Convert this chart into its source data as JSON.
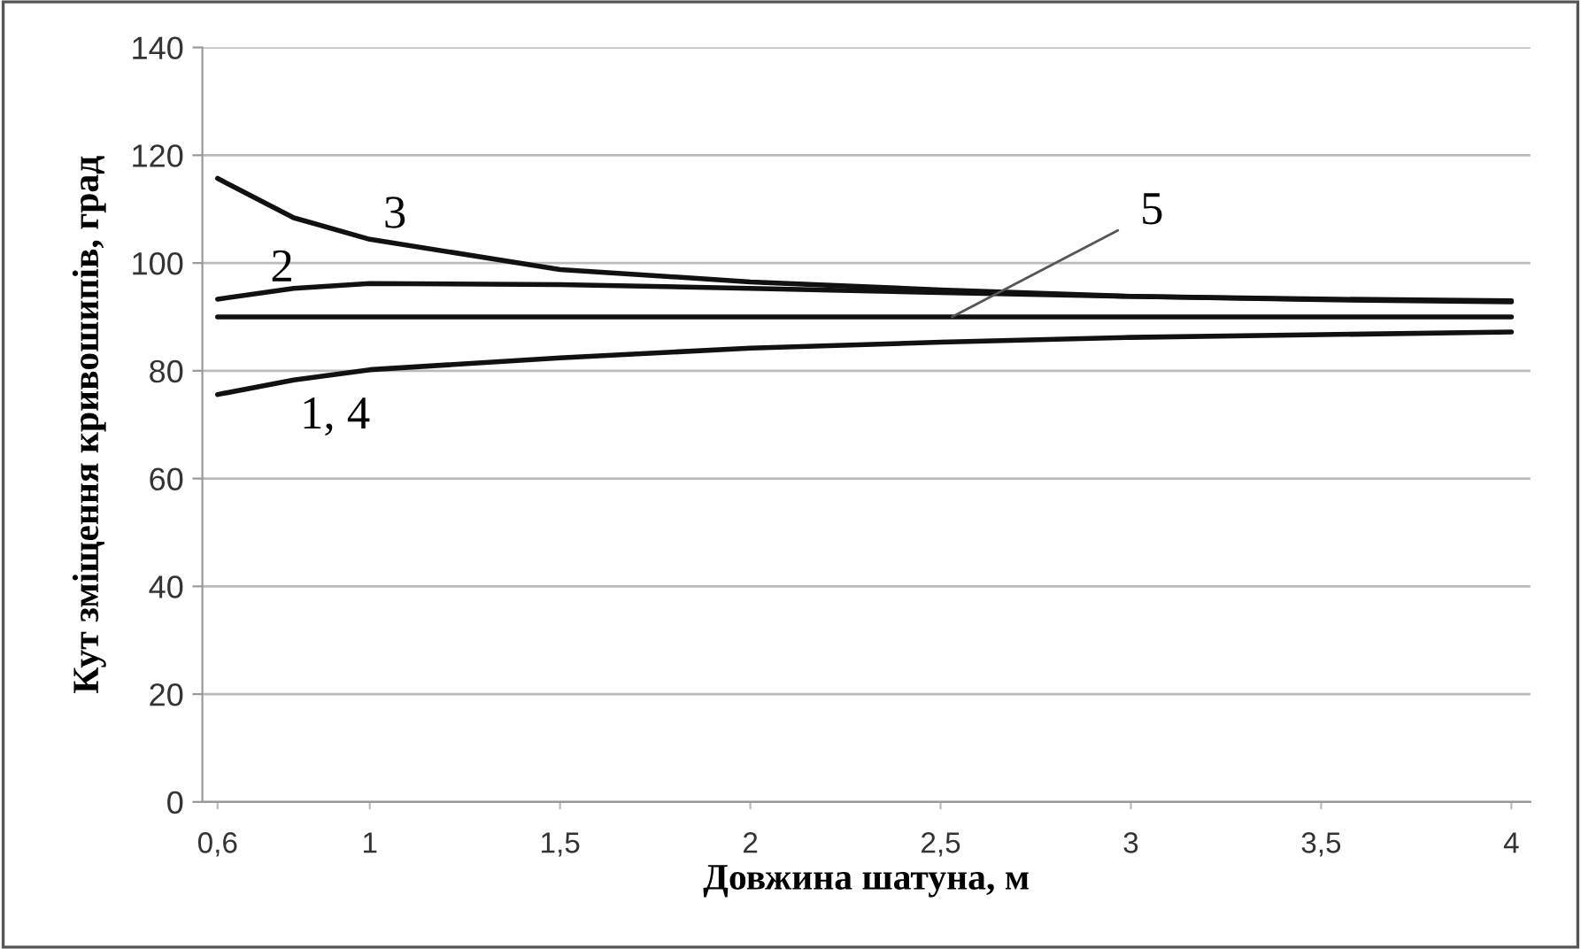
{
  "chart_data": {
    "type": "line",
    "xlabel": "Довжина шатуна, м",
    "ylabel": "Кут зміщення кривошипів, град",
    "x": [
      0.6,
      0.8,
      1,
      1.5,
      2,
      2.5,
      3,
      3.5,
      4
    ],
    "series": [
      {
        "color": "#111111",
        "values": [
          75.6,
          78.3,
          80.2,
          82.4,
          84.2,
          85.3,
          86.2,
          86.7,
          87.2
        ]
      },
      {
        "color": "#111111",
        "values": [
          93.3,
          95.3,
          96.2,
          96.0,
          95.3,
          94.5,
          93.8,
          93.3,
          93.0
        ]
      },
      {
        "color": "#111111",
        "values": [
          115.7,
          108.4,
          104.4,
          98.8,
          96.5,
          95.0,
          93.8,
          93.2,
          92.8
        ]
      },
      {
        "color": "#111111",
        "values": [
          90,
          90,
          90,
          90,
          90,
          90,
          90,
          90,
          90
        ]
      }
    ],
    "xlim": [
      0.56,
      4.05
    ],
    "xticks": [
      {
        "value": 0.6,
        "label": "0,6"
      },
      1,
      {
        "value": 1.5,
        "label": "1,5"
      },
      2,
      {
        "value": 2.5,
        "label": "2,5"
      },
      3,
      {
        "value": 3.5,
        "label": "3,5"
      },
      4
    ],
    "ylim": [
      0,
      140
    ],
    "yticks": [
      0,
      20,
      40,
      60,
      80,
      100,
      120,
      140
    ],
    "grid": "y",
    "legend": false,
    "marker": "none",
    "line_style": "solid",
    "annotations": [
      "1, 4",
      "2",
      "3",
      {
        "text": "5",
        "x": 2.53,
        "y": 90
      }
    ]
  }
}
